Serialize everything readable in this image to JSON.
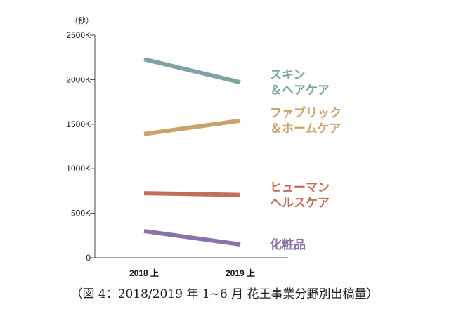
{
  "chart_data": {
    "type": "line",
    "y_unit": "（秒）",
    "categories": [
      "2018 上",
      "2019 上"
    ],
    "ylim": [
      0,
      2500
    ],
    "y_ticks": [
      {
        "value": 0,
        "label": "0"
      },
      {
        "value": 500,
        "label": "500K"
      },
      {
        "value": 1000,
        "label": "1000K"
      },
      {
        "value": 1500,
        "label": "1500K"
      },
      {
        "value": 2000,
        "label": "2000K"
      },
      {
        "value": 2500,
        "label": "2500K"
      }
    ],
    "grid": false,
    "series": [
      {
        "name": "スキン＆ヘアケア",
        "name_lines": [
          "スキン",
          "＆ヘアケア"
        ],
        "values": [
          2230,
          1970
        ],
        "color": "#7fa3a3"
      },
      {
        "name": "ファブリック＆ホームケア",
        "name_lines": [
          "ファブリック",
          "＆ホームケア"
        ],
        "values": [
          1390,
          1540
        ],
        "color": "#c8a46c"
      },
      {
        "name": "ヒューマンヘルスケア",
        "name_lines": [
          "ヒューマン",
          "ヘルスケア"
        ],
        "values": [
          725,
          705
        ],
        "color": "#c0705a"
      },
      {
        "name": "化粧品",
        "name_lines": [
          "化粧品"
        ],
        "values": [
          300,
          150
        ],
        "color": "#8a73a8"
      }
    ],
    "legend": "right"
  },
  "caption": "（図 4：2018/2019 年 1~6 月 花王事業分野別出稿量）"
}
